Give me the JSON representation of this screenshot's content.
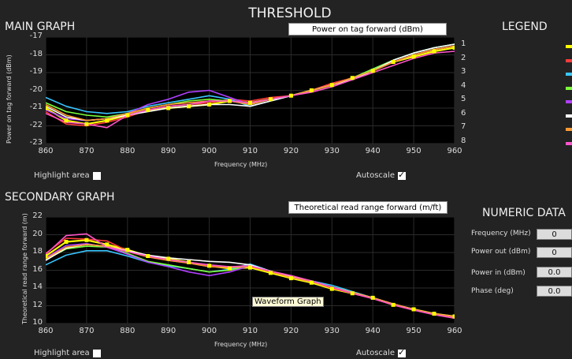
{
  "title": "THRESHOLD",
  "main": {
    "section_title": "MAIN GRAPH",
    "selector": "Power on tag forward (dBm)",
    "ylabel": "Power on tag forward (dBm)",
    "xlabel": "Frequency (MHz)",
    "highlight_label": "Highlight area",
    "autoscale_label": "Autoscale",
    "right_ticks": [
      "1",
      "2",
      "3",
      "4",
      "5",
      "6",
      "7",
      "8"
    ]
  },
  "secondary": {
    "section_title": "SECONDARY GRAPH",
    "selector": "Theoretical read range forward (m/ft)",
    "ylabel": "Theoretical read range forward (m)",
    "xlabel": "Frequency (MHz)",
    "highlight_label": "Highlight area",
    "autoscale_label": "Autoscale",
    "tooltip": "Waveform Graph"
  },
  "legend": {
    "title": "LEGEND"
  },
  "numeric": {
    "title": "NUMERIC DATA",
    "rows": [
      {
        "label": "Frequency (MHz)",
        "value": "0"
      },
      {
        "label": "Power out (dBm)",
        "value": "0"
      },
      {
        "label": "Power in (dBm)",
        "value": "0.0"
      },
      {
        "label": "Phase (deg)",
        "value": "0.0"
      }
    ]
  },
  "chart_data": [
    {
      "type": "line",
      "xlim": [
        860,
        960
      ],
      "ylim": [
        -23,
        -17
      ],
      "x": [
        860,
        865,
        870,
        875,
        880,
        885,
        890,
        895,
        900,
        905,
        910,
        915,
        920,
        925,
        930,
        935,
        940,
        945,
        950,
        955,
        960
      ],
      "x_ticks": [
        "860",
        "870",
        "880",
        "890",
        "900",
        "910",
        "920",
        "930",
        "940",
        "950",
        "960"
      ],
      "y_ticks": [
        "-17",
        "-18",
        "-19",
        "-20",
        "-21",
        "-22",
        "-23"
      ],
      "xlabel": "Frequency (MHz)",
      "ylabel": "Power on tag forward (dBm)",
      "series": [
        {
          "color": "#ffff00",
          "values": [
            -21.0,
            -21.7,
            -21.9,
            -21.7,
            -21.4,
            -21.1,
            -21.0,
            -20.9,
            -20.8,
            -20.6,
            -20.7,
            -20.5,
            -20.3,
            -20.0,
            -19.7,
            -19.3,
            -18.9,
            -18.4,
            -18.1,
            -17.8,
            -17.6
          ]
        },
        {
          "color": "#ff3b3b",
          "values": [
            -21.2,
            -21.9,
            -22.0,
            -21.8,
            -21.5,
            -21.1,
            -20.9,
            -20.8,
            -20.7,
            -20.5,
            -20.6,
            -20.4,
            -20.3,
            -20.0,
            -19.6,
            -19.3,
            -18.9,
            -18.4,
            -18.0,
            -17.7,
            -17.5
          ]
        },
        {
          "color": "#39c6ff",
          "values": [
            -20.4,
            -20.9,
            -21.2,
            -21.3,
            -21.2,
            -20.9,
            -20.7,
            -20.5,
            -20.3,
            -20.5,
            -20.9,
            -20.6,
            -20.3,
            -20.0,
            -19.7,
            -19.3,
            -18.8,
            -18.3,
            -17.9,
            -17.6,
            -17.4
          ]
        },
        {
          "color": "#7cff3a",
          "values": [
            -20.7,
            -21.2,
            -21.4,
            -21.5,
            -21.3,
            -21.0,
            -20.8,
            -20.6,
            -20.5,
            -20.6,
            -20.8,
            -20.5,
            -20.3,
            -20.0,
            -19.7,
            -19.3,
            -18.8,
            -18.3,
            -17.9,
            -17.6,
            -17.4
          ]
        },
        {
          "color": "#b040ff",
          "values": [
            -21.1,
            -21.6,
            -21.7,
            -21.6,
            -21.3,
            -20.8,
            -20.5,
            -20.1,
            -20.0,
            -20.4,
            -20.8,
            -20.5,
            -20.3,
            -20.0,
            -19.7,
            -19.4,
            -18.9,
            -18.4,
            -18.0,
            -17.7,
            -17.5
          ]
        },
        {
          "color": "#ffffff",
          "values": [
            -20.9,
            -21.5,
            -21.7,
            -21.6,
            -21.4,
            -21.2,
            -21.0,
            -20.9,
            -20.8,
            -20.8,
            -20.9,
            -20.6,
            -20.3,
            -20.0,
            -19.7,
            -19.4,
            -18.9,
            -18.3,
            -17.9,
            -17.6,
            -17.4
          ]
        },
        {
          "color": "#ff9933",
          "values": [
            -20.8,
            -21.4,
            -21.7,
            -21.6,
            -21.3,
            -21.0,
            -20.8,
            -20.7,
            -20.6,
            -20.6,
            -20.8,
            -20.5,
            -20.3,
            -20.0,
            -19.7,
            -19.3,
            -18.9,
            -18.4,
            -18.0,
            -17.7,
            -17.5
          ]
        },
        {
          "color": "#ff55c8",
          "values": [
            -21.3,
            -21.8,
            -21.9,
            -22.1,
            -21.4,
            -21.1,
            -20.9,
            -20.8,
            -20.6,
            -20.6,
            -20.7,
            -20.5,
            -20.3,
            -20.1,
            -19.8,
            -19.4,
            -19.0,
            -18.6,
            -18.2,
            -17.9,
            -17.8
          ]
        }
      ]
    },
    {
      "type": "line",
      "xlim": [
        860,
        960
      ],
      "ylim": [
        10,
        22
      ],
      "x": [
        860,
        865,
        870,
        875,
        880,
        885,
        890,
        895,
        900,
        905,
        910,
        915,
        920,
        925,
        930,
        935,
        940,
        945,
        950,
        955,
        960
      ],
      "x_ticks": [
        "860",
        "870",
        "880",
        "890",
        "900",
        "910",
        "920",
        "930",
        "940",
        "950",
        "960"
      ],
      "y_ticks": [
        "22",
        "20",
        "18",
        "16",
        "14",
        "12",
        "10"
      ],
      "xlabel": "Frequency (MHz)",
      "ylabel": "Theoretical read range forward (m)",
      "series": [
        {
          "color": "#ffff00",
          "values": [
            17.6,
            19.2,
            19.4,
            18.9,
            18.3,
            17.6,
            17.3,
            16.9,
            16.5,
            16.2,
            16.3,
            15.7,
            15.1,
            14.6,
            13.9,
            13.4,
            12.9,
            12.1,
            11.6,
            11.1,
            10.8
          ]
        },
        {
          "color": "#ff3b3b",
          "values": [
            17.9,
            19.6,
            19.5,
            19.3,
            18.2,
            17.5,
            17.1,
            16.8,
            16.5,
            16.3,
            16.6,
            15.9,
            15.3,
            14.7,
            14.0,
            13.4,
            12.8,
            12.1,
            11.5,
            11.1,
            10.7
          ]
        },
        {
          "color": "#39c6ff",
          "values": [
            16.6,
            17.7,
            18.2,
            18.2,
            17.6,
            16.9,
            16.5,
            16.2,
            15.8,
            16.1,
            16.7,
            15.9,
            15.3,
            14.8,
            14.3,
            13.6,
            12.9,
            12.2,
            11.6,
            11.1,
            10.8
          ]
        },
        {
          "color": "#7cff3a",
          "values": [
            17.2,
            18.4,
            18.7,
            18.6,
            17.9,
            17.0,
            16.6,
            16.2,
            15.8,
            16.0,
            16.5,
            15.8,
            15.2,
            14.7,
            14.1,
            13.5,
            12.9,
            12.2,
            11.6,
            11.1,
            10.8
          ]
        },
        {
          "color": "#b040ff",
          "values": [
            17.4,
            18.8,
            19.0,
            18.6,
            17.8,
            16.9,
            16.4,
            15.8,
            15.4,
            15.8,
            16.5,
            15.9,
            15.2,
            14.7,
            14.1,
            13.5,
            12.9,
            12.2,
            11.6,
            11.1,
            10.8
          ]
        },
        {
          "color": "#ffffff",
          "values": [
            17.1,
            18.5,
            18.9,
            18.7,
            18.2,
            17.7,
            17.4,
            17.2,
            17.0,
            16.9,
            16.6,
            15.9,
            15.3,
            14.7,
            14.1,
            13.5,
            12.9,
            12.2,
            11.6,
            11.1,
            10.8
          ]
        },
        {
          "color": "#ff9933",
          "values": [
            17.3,
            18.6,
            18.9,
            18.7,
            18.1,
            17.5,
            17.1,
            16.8,
            16.4,
            16.3,
            16.4,
            15.8,
            15.2,
            14.7,
            14.1,
            13.5,
            12.9,
            12.2,
            11.6,
            11.1,
            10.8
          ]
        },
        {
          "color": "#ff55c8",
          "values": [
            17.8,
            19.9,
            20.1,
            18.6,
            18.1,
            17.6,
            17.2,
            16.9,
            16.6,
            16.4,
            16.5,
            15.9,
            15.4,
            14.8,
            14.1,
            13.4,
            12.8,
            12.1,
            11.5,
            11.0,
            10.6
          ]
        }
      ]
    }
  ]
}
